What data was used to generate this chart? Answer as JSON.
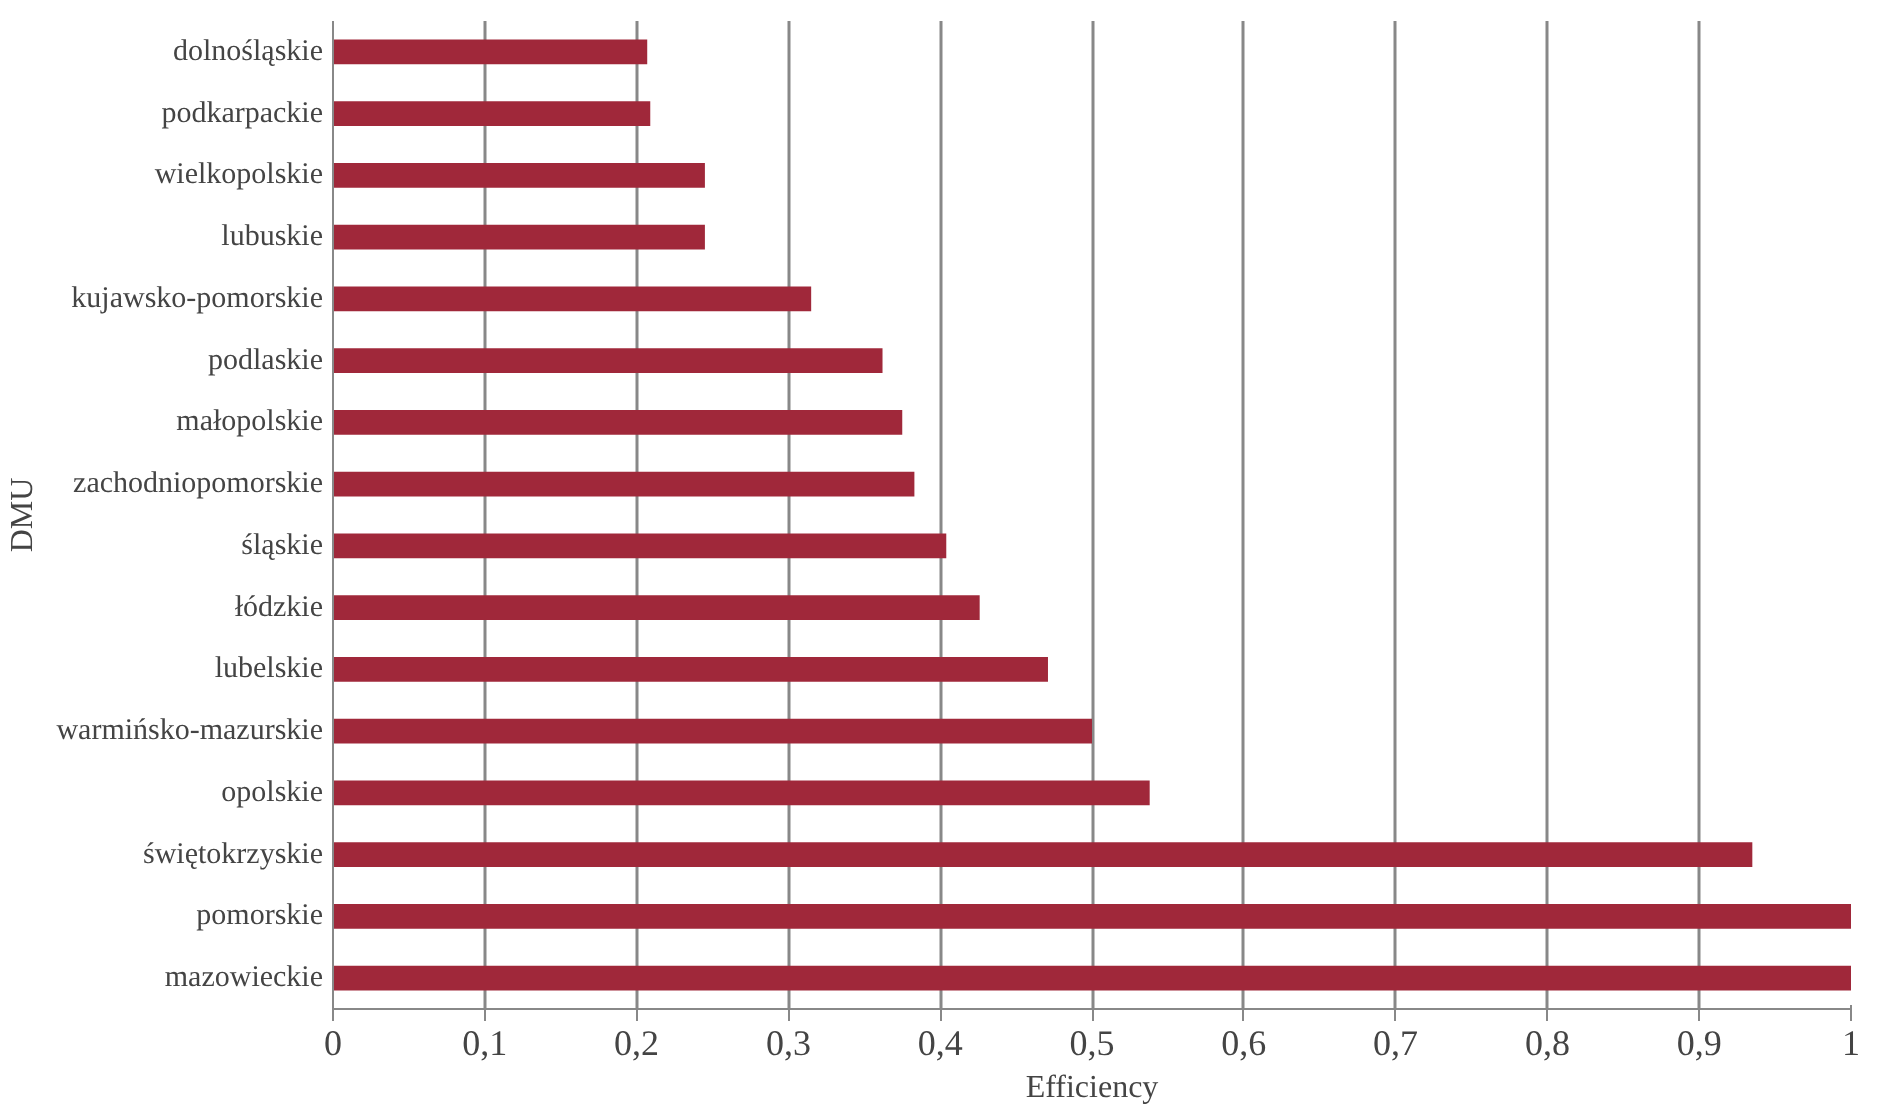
{
  "chart_data": {
    "type": "bar",
    "orientation": "horizontal",
    "xlabel": "Efficiency",
    "ylabel": "DMU",
    "categories": [
      "dolnośląskie",
      "podkarpackie",
      "wielkopolskie",
      "lubuskie",
      "kujawsko-pomorskie",
      "podlaskie",
      "małopolskie",
      "zachodniopomorskie",
      "śląskie",
      "łódzkie",
      "lubelskie",
      "warmińsko-mazurskie",
      "opolskie",
      "świętokrzyskie",
      "pomorskie",
      "mazowieckie"
    ],
    "values": [
      0.207,
      0.209,
      0.245,
      0.245,
      0.315,
      0.362,
      0.375,
      0.383,
      0.404,
      0.426,
      0.471,
      0.5,
      0.538,
      0.935,
      1,
      1
    ],
    "color": "#a0283a",
    "xlim": [
      0,
      1
    ],
    "xticks": [
      0,
      {
        "value": 0.1,
        "label": "0,1"
      },
      {
        "value": 0.2,
        "label": "0,2"
      },
      {
        "value": 0.3,
        "label": "0,3"
      },
      {
        "value": 0.4,
        "label": "0,4"
      },
      {
        "value": 0.5,
        "label": "0,5"
      },
      {
        "value": 0.6,
        "label": "0,6"
      },
      {
        "value": 0.7,
        "label": "0,7"
      },
      {
        "value": 0.8,
        "label": "0,8"
      },
      {
        "value": 0.9,
        "label": "0,9"
      },
      1
    ],
    "grid": "x"
  }
}
